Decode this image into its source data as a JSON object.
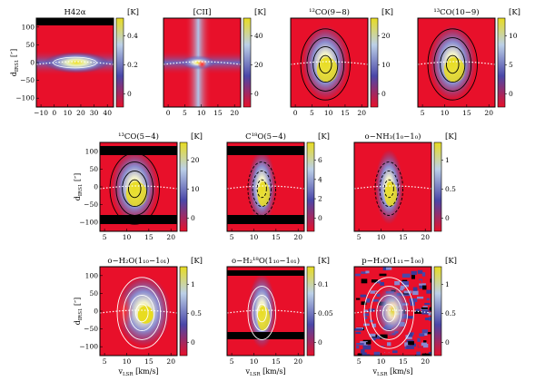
{
  "figure": {
    "panels": [
      {
        "id": "h42a",
        "title": "H42α",
        "unit": "[K]",
        "xticks": [
          "−10",
          "0",
          "10",
          "20",
          "30",
          "40"
        ],
        "cbar": [
          "0.4",
          "0.2",
          "0"
        ],
        "show_y": true,
        "show_x": false,
        "style": "blob",
        "ctr": null
      },
      {
        "id": "cii",
        "title": "[CII]",
        "unit": "[K]",
        "xticks": [
          "0",
          "5",
          "10",
          "15",
          "20"
        ],
        "cbar": [
          "40",
          "20",
          "0"
        ],
        "show_y": false,
        "show_x": false,
        "style": "cross",
        "ctr": null
      },
      {
        "id": "co98",
        "title": "¹²CO(9−8)",
        "unit": "[K]",
        "xticks": [
          "0",
          "5",
          "10",
          "15",
          "20"
        ],
        "cbar": [
          "20",
          "10",
          "0"
        ],
        "show_y": false,
        "show_x": false,
        "style": "core",
        "ctr": "black"
      },
      {
        "id": "13co109",
        "title": "¹³CO(10−9)",
        "unit": "[K]",
        "xticks": [
          "5",
          "10",
          "15",
          "20"
        ],
        "cbar": [
          "10",
          "5",
          "0"
        ],
        "show_y": false,
        "show_x": false,
        "style": "core",
        "ctr": "black"
      },
      {
        "id": "13co54",
        "title": "¹³CO(5−4)",
        "unit": "[K]",
        "xticks": [
          "5",
          "10",
          "15",
          "20"
        ],
        "cbar": [
          "20",
          "10",
          "0"
        ],
        "show_y": true,
        "show_x": false,
        "style": "core",
        "ctr": "black"
      },
      {
        "id": "c18o54",
        "title": "C¹⁸O(5−4)",
        "unit": "[K]",
        "xticks": [
          "5",
          "10",
          "15",
          "20"
        ],
        "cbar": [
          "6",
          "4",
          "2",
          "0"
        ],
        "show_y": false,
        "show_x": false,
        "style": "narrow",
        "ctr": "dashed"
      },
      {
        "id": "nh3",
        "title": "o−NH₃(1₀−1₀)",
        "unit": "[K]",
        "xticks": [
          "5",
          "10",
          "15",
          "20"
        ],
        "cbar": [
          "1",
          "0.5",
          "0"
        ],
        "show_y": false,
        "show_x": false,
        "style": "narrow",
        "ctr": "dashed"
      },
      {
        "id": "h2o110",
        "title": "o−H₂O(1₁₀−1₀₁)",
        "unit": "[K]",
        "xticks": [
          "5",
          "10",
          "15",
          "20"
        ],
        "cbar": [
          "1",
          "0.5",
          "0"
        ],
        "show_y": true,
        "show_x": true,
        "style": "abs",
        "ctr": "white"
      },
      {
        "id": "h218o",
        "title": "o−H₂¹⁸O(1₁₀−1₀₁)",
        "unit": "[K]",
        "xticks": [
          "5",
          "10",
          "15",
          "20"
        ],
        "cbar": [
          "0.1",
          "0.05",
          "0"
        ],
        "show_y": false,
        "show_x": true,
        "style": "narrow",
        "ctr": "white"
      },
      {
        "id": "ph2o",
        "title": "p−H₂O(1₁₁−1₀₀)",
        "unit": "[K]",
        "xticks": [
          "5",
          "10",
          "15",
          "20"
        ],
        "cbar": [
          "1",
          "0.5",
          "0"
        ],
        "show_y": false,
        "show_x": true,
        "style": "noisy",
        "ctr": "white"
      }
    ],
    "y_ticks": [
      "100",
      "50",
      "0",
      "−50",
      "−100"
    ],
    "y_label": "d",
    "y_label_sub": "IRS1",
    "y_label_unit": " [″]",
    "x_label": "v",
    "x_label_sub": "LSR",
    "x_label_unit": " [km/s]"
  }
}
